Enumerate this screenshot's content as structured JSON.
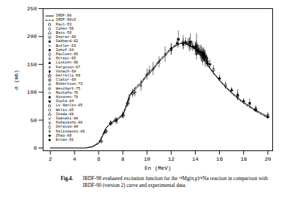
{
  "chart_data": {
    "type": "scatter",
    "xlabel": "En (MeV)",
    "ylabel": "σ (mb)",
    "caption_label": "Fig.4.",
    "caption": "IRDF-98 evaluated excitation function for the ²⁴Mg(n,p)²⁴Na reaction in comparison with IRDF-90 (version 2) curve and experimental data.",
    "color": "#000000",
    "xlim": [
      1.4,
      20.4
    ],
    "xticks": [
      2,
      4,
      6,
      8,
      10,
      12,
      14,
      16,
      18,
      20
    ],
    "ylim": [
      -5,
      250
    ],
    "yticks": [
      0,
      50,
      100,
      150,
      200,
      250
    ],
    "grid": false,
    "legend": "top-left",
    "series": [
      {
        "name": "IRDF-98",
        "type": "line",
        "line_style": "solid",
        "x": [
          2,
          4.9,
          5.5,
          6,
          6.3,
          6.6,
          7,
          7.5,
          8,
          8.3,
          8.6,
          9,
          9.5,
          10,
          10.5,
          11,
          11.5,
          12,
          12.5,
          13,
          13.5,
          14,
          14.5,
          15,
          15.5,
          16,
          16.5,
          17,
          17.5,
          18,
          18.5,
          19,
          19.5,
          20
        ],
        "values": [
          0,
          0,
          2,
          8,
          20,
          35,
          45,
          50,
          58,
          75,
          95,
          105,
          115,
          130,
          140,
          155,
          165,
          178,
          185,
          190,
          185,
          178,
          165,
          150,
          135,
          122,
          110,
          100,
          90,
          82,
          75,
          68,
          62,
          56
        ]
      },
      {
        "name": "IRDF-90v2",
        "type": "line",
        "line_style": "dashed",
        "x": [
          2,
          4.9,
          5.5,
          6,
          6.3,
          6.6,
          7,
          7.5,
          8,
          8.3,
          8.6,
          9,
          9.5,
          10,
          10.5,
          11,
          11.5,
          12,
          12.5,
          13,
          13.5,
          14,
          14.5,
          15,
          15.5,
          16,
          16.5,
          17,
          17.5,
          18,
          18.5,
          19,
          19.5,
          20
        ],
        "values": [
          0,
          0,
          3,
          10,
          22,
          36,
          44,
          52,
          60,
          78,
          96,
          108,
          118,
          132,
          143,
          157,
          168,
          180,
          186,
          188,
          184,
          176,
          163,
          149,
          134,
          121,
          109,
          98,
          89,
          80,
          73,
          66,
          60,
          54
        ]
      },
      {
        "name": "Paul-53",
        "marker": "square",
        "x": [
          14.5
        ],
        "values": [
          170
        ],
        "errors": [
          15
        ]
      },
      {
        "name": "Cohen-56",
        "marker": "circle",
        "x": [
          14.1
        ],
        "values": [
          185
        ],
        "errors": [
          20
        ]
      },
      {
        "name": "Bass-59",
        "marker": "triangle",
        "x": [
          14.1,
          14.8
        ],
        "values": [
          170,
          160
        ],
        "errors": [
          12,
          15
        ]
      },
      {
        "name": "Depraz-60",
        "marker": "wye",
        "x": [
          14.6
        ],
        "values": [
          158
        ],
        "errors": [
          10
        ]
      },
      {
        "name": "Gabbard-62",
        "marker": "square-filled",
        "x": [
          12.6,
          13.6,
          14.4,
          17.5,
          18.5
        ],
        "values": [
          195,
          190,
          172,
          95,
          80
        ],
        "errors": [
          15,
          15,
          12,
          10,
          8
        ]
      },
      {
        "name": "Butler-63",
        "marker": "times",
        "x": [
          7.5,
          8.5,
          9.5,
          10.5,
          11.5
        ],
        "values": [
          48,
          88,
          112,
          142,
          168
        ],
        "errors": [
          6,
          8,
          10,
          12,
          14
        ]
      },
      {
        "name": "Imhof-64",
        "marker": "circle-filled",
        "x": [
          14.2
        ],
        "values": [
          176
        ],
        "errors": [
          8
        ]
      },
      {
        "name": "Paulsen-65",
        "marker": "diamond",
        "x": [
          13.5,
          14.7,
          15.5,
          16.5,
          17.5,
          19,
          20
        ],
        "values": [
          188,
          165,
          140,
          112,
          93,
          70,
          58
        ],
        "errors": [
          10,
          9,
          8,
          7,
          7,
          6,
          6
        ]
      },
      {
        "name": "Strain-65",
        "marker": "plus",
        "x": [
          14.8
        ],
        "values": [
          166
        ],
        "errors": [
          10
        ]
      },
      {
        "name": "Liskien-66",
        "marker": "triangle-filled",
        "x": [
          12.5,
          13.2,
          14,
          15,
          16,
          17,
          18,
          19,
          20
        ],
        "values": [
          188,
          190,
          180,
          152,
          125,
          104,
          84,
          68,
          56
        ],
        "errors": [
          8,
          8,
          8,
          7,
          6,
          5,
          5,
          4,
          4
        ]
      },
      {
        "name": "Ferguson-67",
        "marker": "asterisk",
        "x": [
          14.1
        ],
        "values": [
          175
        ],
        "errors": [
          10
        ]
      },
      {
        "name": "Vonach-68",
        "marker": "diamond-filled",
        "x": [
          14.7
        ],
        "values": [
          169
        ],
        "errors": [
          8
        ]
      },
      {
        "name": "Gerrelli-69",
        "marker": "star",
        "x": [
          14.1
        ],
        "values": [
          182
        ],
        "errors": [
          10
        ]
      },
      {
        "name": "Clator-69",
        "marker": "cross",
        "x": [
          6.2,
          6.6,
          7.0,
          7.4,
          8.0,
          8.4,
          8.8
        ],
        "values": [
          12,
          30,
          44,
          50,
          58,
          80,
          98
        ],
        "errors": [
          2,
          4,
          4,
          5,
          6,
          7,
          8
        ]
      },
      {
        "name": "Robertson-73",
        "marker": "triangle2",
        "x": [
          14.8
        ],
        "values": [
          164
        ],
        "errors": [
          6
        ]
      },
      {
        "name": "Wenchart-75",
        "marker": "square2",
        "x": [
          14.7
        ],
        "values": [
          167
        ],
        "errors": [
          7
        ]
      },
      {
        "name": "Mostafa-76",
        "marker": "diamond2",
        "x": [
          14.5,
          13.5
        ],
        "values": [
          171,
          185
        ],
        "errors": [
          10,
          12
        ]
      },
      {
        "name": "Hyvonen-78",
        "marker": "star-filled",
        "x": [
          12,
          13,
          14,
          15
        ],
        "values": [
          178,
          186,
          180,
          155
        ],
        "errors": [
          10,
          10,
          10,
          10
        ]
      },
      {
        "name": "Gupta-84",
        "marker": "wye-filled",
        "x": [
          14.6
        ],
        "values": [
          170
        ],
        "errors": [
          10
        ]
      },
      {
        "name": "Lu Hanlin-85",
        "marker": "square",
        "x": [
          14.2,
          14.6,
          14.9
        ],
        "values": [
          175,
          168,
          160
        ],
        "errors": [
          7,
          7,
          7
        ]
      },
      {
        "name": "Welin-85",
        "marker": "circle",
        "x": [
          14.7
        ],
        "values": [
          168
        ],
        "errors": [
          9
        ]
      },
      {
        "name": "Ikeda-88",
        "marker": "triangle",
        "x": [
          13.4,
          13.7,
          14.3,
          14.9
        ],
        "values": [
          188,
          184,
          176,
          162
        ],
        "errors": [
          8,
          8,
          8,
          8
        ]
      },
      {
        "name": "Iwasaki-88",
        "marker": "times",
        "x": [
          10.2,
          11,
          12,
          13
        ],
        "values": [
          138,
          154,
          176,
          190
        ],
        "errors": [
          9,
          10,
          10,
          12
        ]
      },
      {
        "name": "Kobayashi-88",
        "marker": "plus",
        "x": [
          6.5,
          7,
          8,
          9,
          10
        ],
        "values": [
          28,
          45,
          60,
          100,
          132
        ],
        "errors": [
          3,
          4,
          5,
          8,
          10
        ]
      },
      {
        "name": "Gerasim-89",
        "marker": "diamond",
        "x": [
          14.6
        ],
        "values": [
          169
        ],
        "errors": [
          8
        ]
      },
      {
        "name": "Kalinowski-89",
        "marker": "asterisk",
        "x": [
          14.3,
          14.8
        ],
        "values": [
          174,
          163
        ],
        "errors": [
          6,
          6
        ]
      },
      {
        "name": "Zhao-89",
        "marker": "cross-filled",
        "x": [
          13.8,
          14.6,
          15.2
        ],
        "values": [
          182,
          167,
          150
        ],
        "errors": [
          9,
          8,
          8
        ]
      },
      {
        "name": "Ercan-91",
        "marker": "circle-filled",
        "x": [
          14.7
        ],
        "values": [
          170
        ],
        "errors": [
          10
        ]
      }
    ]
  }
}
